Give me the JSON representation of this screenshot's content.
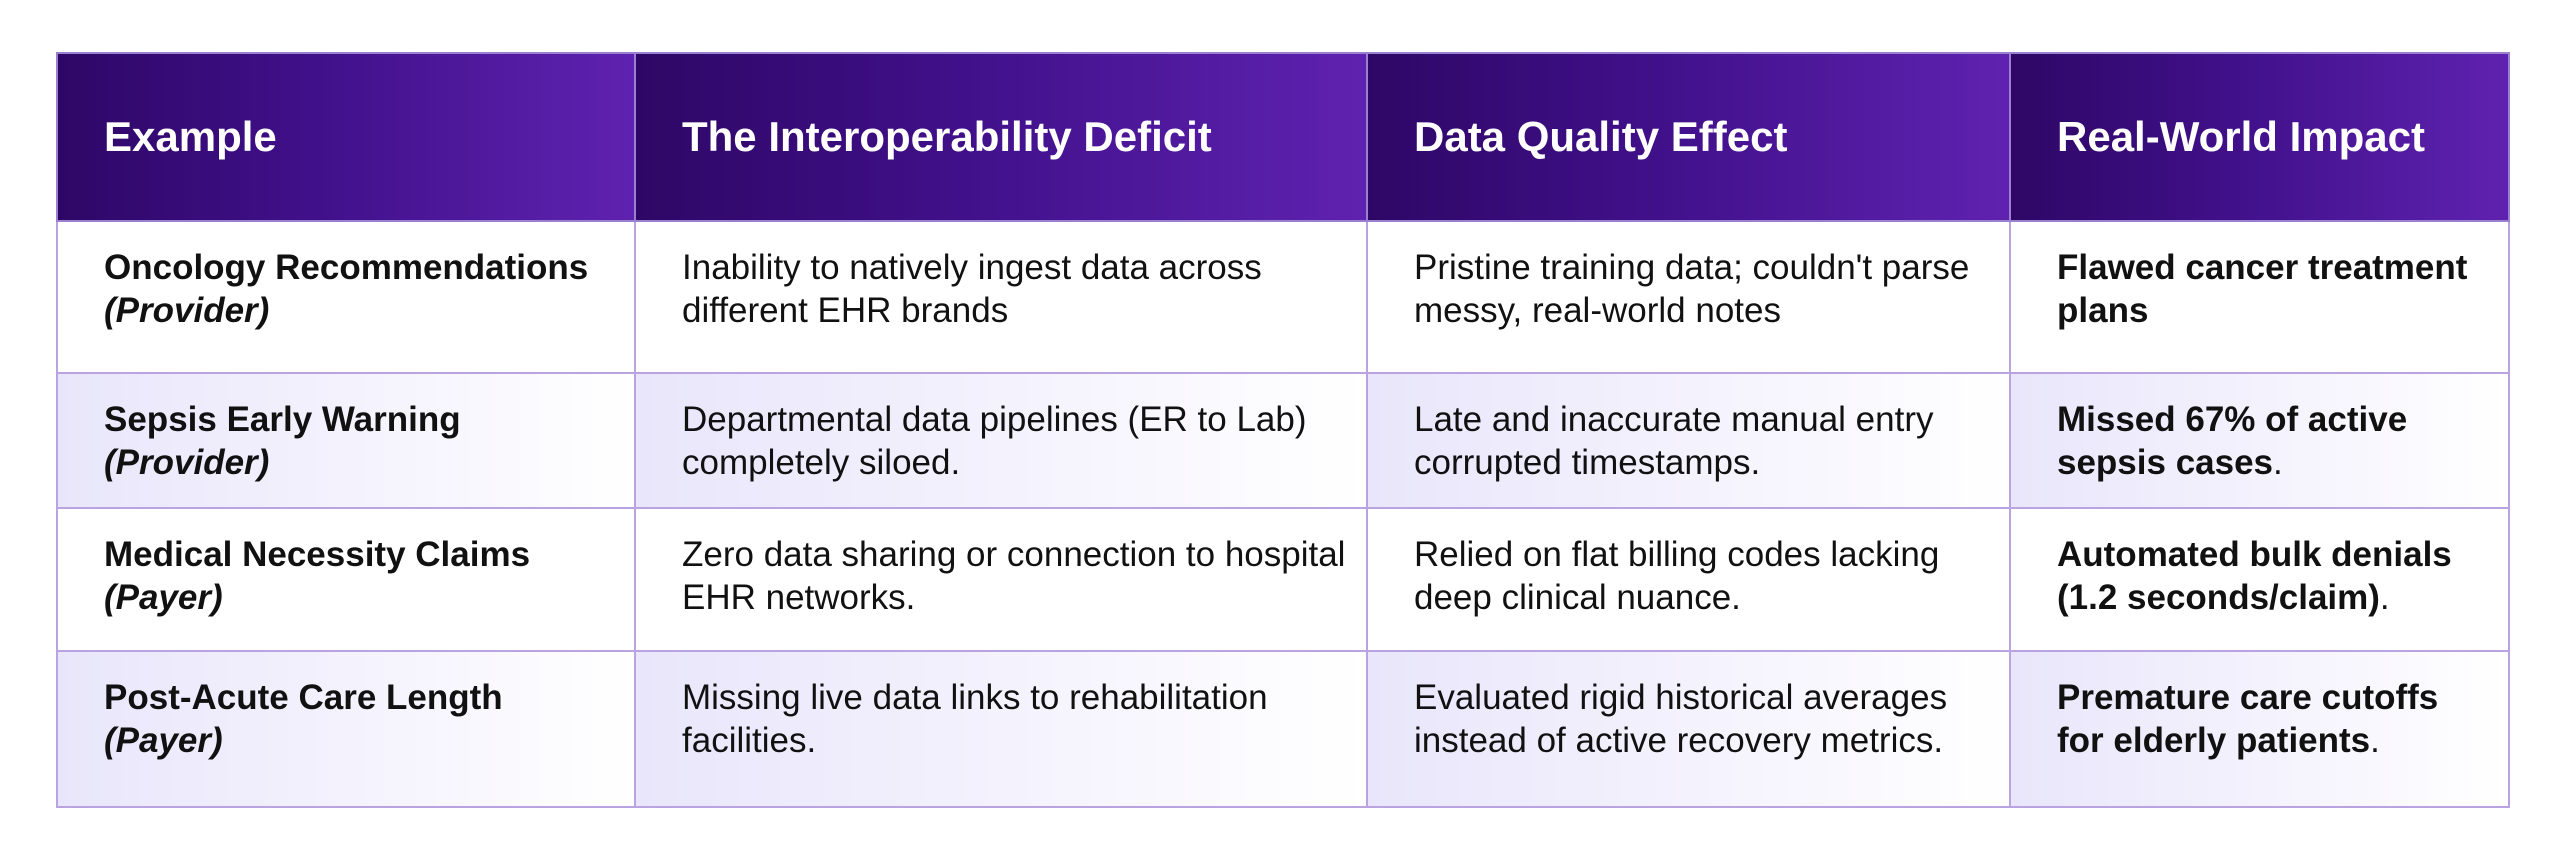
{
  "table": {
    "headers": [
      "Example",
      "The Interoperability Deficit",
      "Data Quality Effect",
      "Real-World Impact"
    ],
    "rows": [
      {
        "example": "Oncology Recommendations",
        "role": "(Provider)",
        "deficit": "Inability to natively ingest data across different EHR brands",
        "effect": "Pristine training data; couldn't parse messy, real-world notes",
        "impact_bold": "Flawed cancer treatment plans",
        "impact_tail": ""
      },
      {
        "example": "Sepsis Early Warning",
        "role": "(Provider)",
        "deficit": "Departmental data pipelines (ER to Lab) completely siloed.",
        "effect": "Late and inaccurate manual entry corrupted timestamps.",
        "impact_bold": "Missed 67% of active sepsis cases",
        "impact_tail": "."
      },
      {
        "example": "Medical Necessity Claims",
        "role": "(Payer)",
        "deficit": "Zero data sharing or connection to hospital EHR networks.",
        "effect": "Relied on flat billing codes lacking deep clinical nuance.",
        "impact_bold": "Automated bulk denials (1.2 seconds/claim)",
        "impact_tail": "."
      },
      {
        "example": "Post-Acute Care Length",
        "role": "(Payer)",
        "deficit": "Missing live data links to rehabilitation facilities.",
        "effect": "Evaluated rigid historical averages instead of active recovery metrics.",
        "impact_bold": "Premature care cutoffs for elderly patients",
        "impact_tail": "."
      }
    ]
  },
  "colors": {
    "header_start": "#2e0766",
    "header_end": "#5f22b0",
    "border": "#b9a3e0",
    "shaded_row": "#e9e6fb"
  }
}
